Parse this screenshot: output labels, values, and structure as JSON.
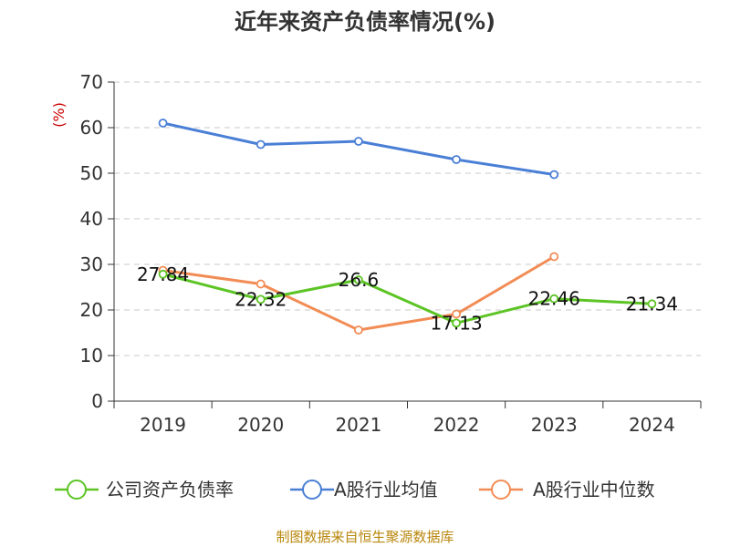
{
  "chart_data": {
    "type": "line",
    "title": "近年来资产负债率情况(%)",
    "y_unit_label": "(%)",
    "categories": [
      "2019",
      "2020",
      "2021",
      "2022",
      "2023",
      "2024"
    ],
    "ylim": [
      0,
      70
    ],
    "yticks": [
      0,
      10,
      20,
      30,
      40,
      50,
      60,
      70
    ],
    "grid": true,
    "legend_position": "bottom",
    "series": [
      {
        "name": "公司资产负债率",
        "color": "#5cc424",
        "values": [
          27.84,
          22.32,
          26.6,
          17.13,
          22.46,
          21.34
        ],
        "data_labels": [
          "27.84",
          "22.32",
          "26.6",
          "17.13",
          "22.46",
          "21.34"
        ]
      },
      {
        "name": "A股行业均值",
        "color": "#4a7fd6",
        "values": [
          61.0,
          56.3,
          57.0,
          53.0,
          49.7,
          null
        ]
      },
      {
        "name": "A股行业中位数",
        "color": "#f28c55",
        "values": [
          28.7,
          25.7,
          15.6,
          19.1,
          31.7,
          null
        ]
      }
    ],
    "source_text": "制图数据来自恒生聚源数据库"
  }
}
